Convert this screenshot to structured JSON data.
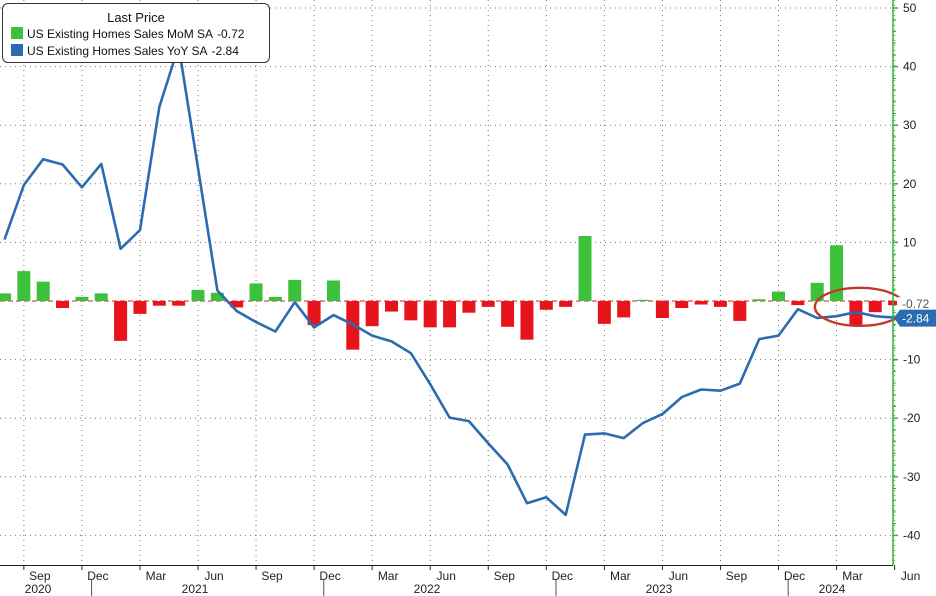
{
  "legend": {
    "title": "Last Price",
    "items": [
      {
        "label": "US Existing Homes Sales MoM SA",
        "value": "-0.72",
        "color": "#3cc13c"
      },
      {
        "label": "US Existing Homes Sales YoY SA",
        "value": "-2.84",
        "color": "#2b6cb0"
      }
    ]
  },
  "chart_data": {
    "type": "bar",
    "ylim": [
      -42,
      51
    ],
    "yticks": [
      50,
      40,
      30,
      20,
      10,
      -10,
      -20,
      -30,
      -40
    ],
    "month_ticks": [
      "Sep",
      "Dec",
      "Mar",
      "Jun",
      "Sep",
      "Dec",
      "Mar",
      "Jun",
      "Sep",
      "Dec",
      "Mar",
      "Jun",
      "Sep",
      "Dec",
      "Mar",
      "Jun"
    ],
    "year_ticks": [
      "2020",
      "2021",
      "2022",
      "2023",
      "2024"
    ],
    "grid": true,
    "legend_position": "top-left",
    "colors": {
      "positive_bar": "#3cc13c",
      "negative_bar": "#e8141b",
      "line": "#2b6cb0",
      "axis": "#2db52d",
      "highlight": "#c0392b"
    },
    "categories": [
      "2020-08",
      "2020-09",
      "2020-10",
      "2020-11",
      "2020-12",
      "2021-01",
      "2021-02",
      "2021-03",
      "2021-04",
      "2021-05",
      "2021-06",
      "2021-07",
      "2021-08",
      "2021-09",
      "2021-10",
      "2021-11",
      "2021-12",
      "2022-01",
      "2022-02",
      "2022-03",
      "2022-04",
      "2022-05",
      "2022-06",
      "2022-07",
      "2022-08",
      "2022-09",
      "2022-10",
      "2022-11",
      "2022-12",
      "2023-01",
      "2023-02",
      "2023-03",
      "2023-04",
      "2023-05",
      "2023-06",
      "2023-07",
      "2023-08",
      "2023-09",
      "2023-10",
      "2023-11",
      "2023-12",
      "2024-01",
      "2024-02",
      "2024-03",
      "2024-04",
      "2024-05",
      "2024-06"
    ],
    "series": [
      {
        "name": "US Existing Homes Sales MoM SA",
        "type": "bar",
        "values": [
          1.3,
          5.1,
          3.3,
          -1.2,
          0.7,
          1.3,
          -6.8,
          -2.2,
          -0.8,
          -0.8,
          1.9,
          1.4,
          -1.1,
          3.0,
          0.7,
          3.6,
          -4.1,
          3.5,
          -8.3,
          -4.3,
          -1.8,
          -3.3,
          -4.5,
          -4.5,
          -2.0,
          -1.0,
          -4.4,
          -6.6,
          -1.5,
          -1.0,
          11.1,
          -3.9,
          -2.8,
          0.2,
          -2.9,
          -1.2,
          -0.6,
          -1.0,
          -3.4,
          0.3,
          1.6,
          -0.7,
          3.1,
          9.5,
          -4.3,
          -1.9,
          -0.72
        ]
      },
      {
        "name": "US Existing Homes Sales YoY SA",
        "type": "line",
        "values": [
          10.5,
          19.8,
          24.2,
          23.3,
          19.4,
          23.4,
          8.9,
          12.1,
          33.1,
          43.5,
          22.7,
          1.8,
          -1.7,
          -3.6,
          -5.2,
          -0.2,
          -4.5,
          -2.4,
          -4.0,
          -5.9,
          -6.9,
          -8.9,
          -14.2,
          -19.9,
          -20.5,
          -24.3,
          -27.9,
          -34.5,
          -33.5,
          -36.5,
          -22.8,
          -22.6,
          -23.4,
          -20.8,
          -19.3,
          -16.4,
          -15.1,
          -15.3,
          -14.1,
          -6.5,
          -5.9,
          -1.4,
          -2.9,
          -2.6,
          -1.9,
          -2.6,
          -2.84
        ]
      }
    ],
    "last_value_labels": [
      "-0.72",
      "-2.84"
    ]
  }
}
